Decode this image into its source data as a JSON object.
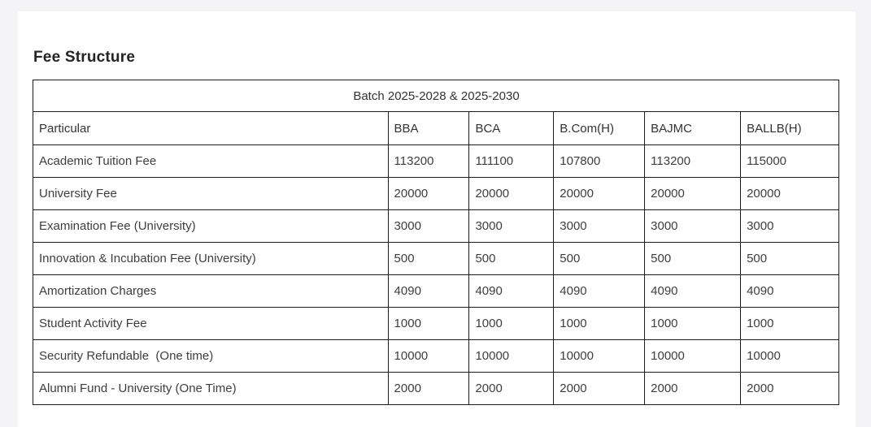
{
  "page": {
    "title": "Fee Structure"
  },
  "table": {
    "batch_header": "Batch 2025-2028 & 2025-2030",
    "columns": [
      "Particular",
      "BBA",
      "BCA",
      "B.Com(H)",
      "BAJMC",
      "BALLB(H)"
    ],
    "rows": [
      {
        "particular": "Academic Tuition Fee",
        "values": [
          "113200",
          "111100",
          "107800",
          "113200",
          "115000"
        ]
      },
      {
        "particular": "University Fee",
        "values": [
          "20000",
          "20000",
          "20000",
          "20000",
          "20000"
        ]
      },
      {
        "particular": "Examination Fee (University)",
        "values": [
          "3000",
          "3000",
          "3000",
          "3000",
          "3000"
        ]
      },
      {
        "particular": "Innovation & Incubation Fee (University)",
        "values": [
          "500",
          "500",
          "500",
          "500",
          "500"
        ]
      },
      {
        "particular": "Amortization Charges",
        "values": [
          "4090",
          "4090",
          "4090",
          "4090",
          "4090"
        ]
      },
      {
        "particular": "Student Activity Fee",
        "values": [
          "1000",
          "1000",
          "1000",
          "1000",
          "1000"
        ]
      },
      {
        "particular": "Security Refundable  (One time)",
        "values": [
          "10000",
          "10000",
          "10000",
          "10000",
          "10000"
        ]
      },
      {
        "particular": "Alumni Fund - University (One Time)",
        "values": [
          "2000",
          "2000",
          "2000",
          "2000",
          "2000"
        ]
      }
    ],
    "colors": {
      "page_background": "#f4f4f6",
      "card_background": "#ffffff",
      "table_border": "#1b1b1b",
      "cell_text": "#3e3e3e",
      "title_text": "#242424"
    }
  }
}
